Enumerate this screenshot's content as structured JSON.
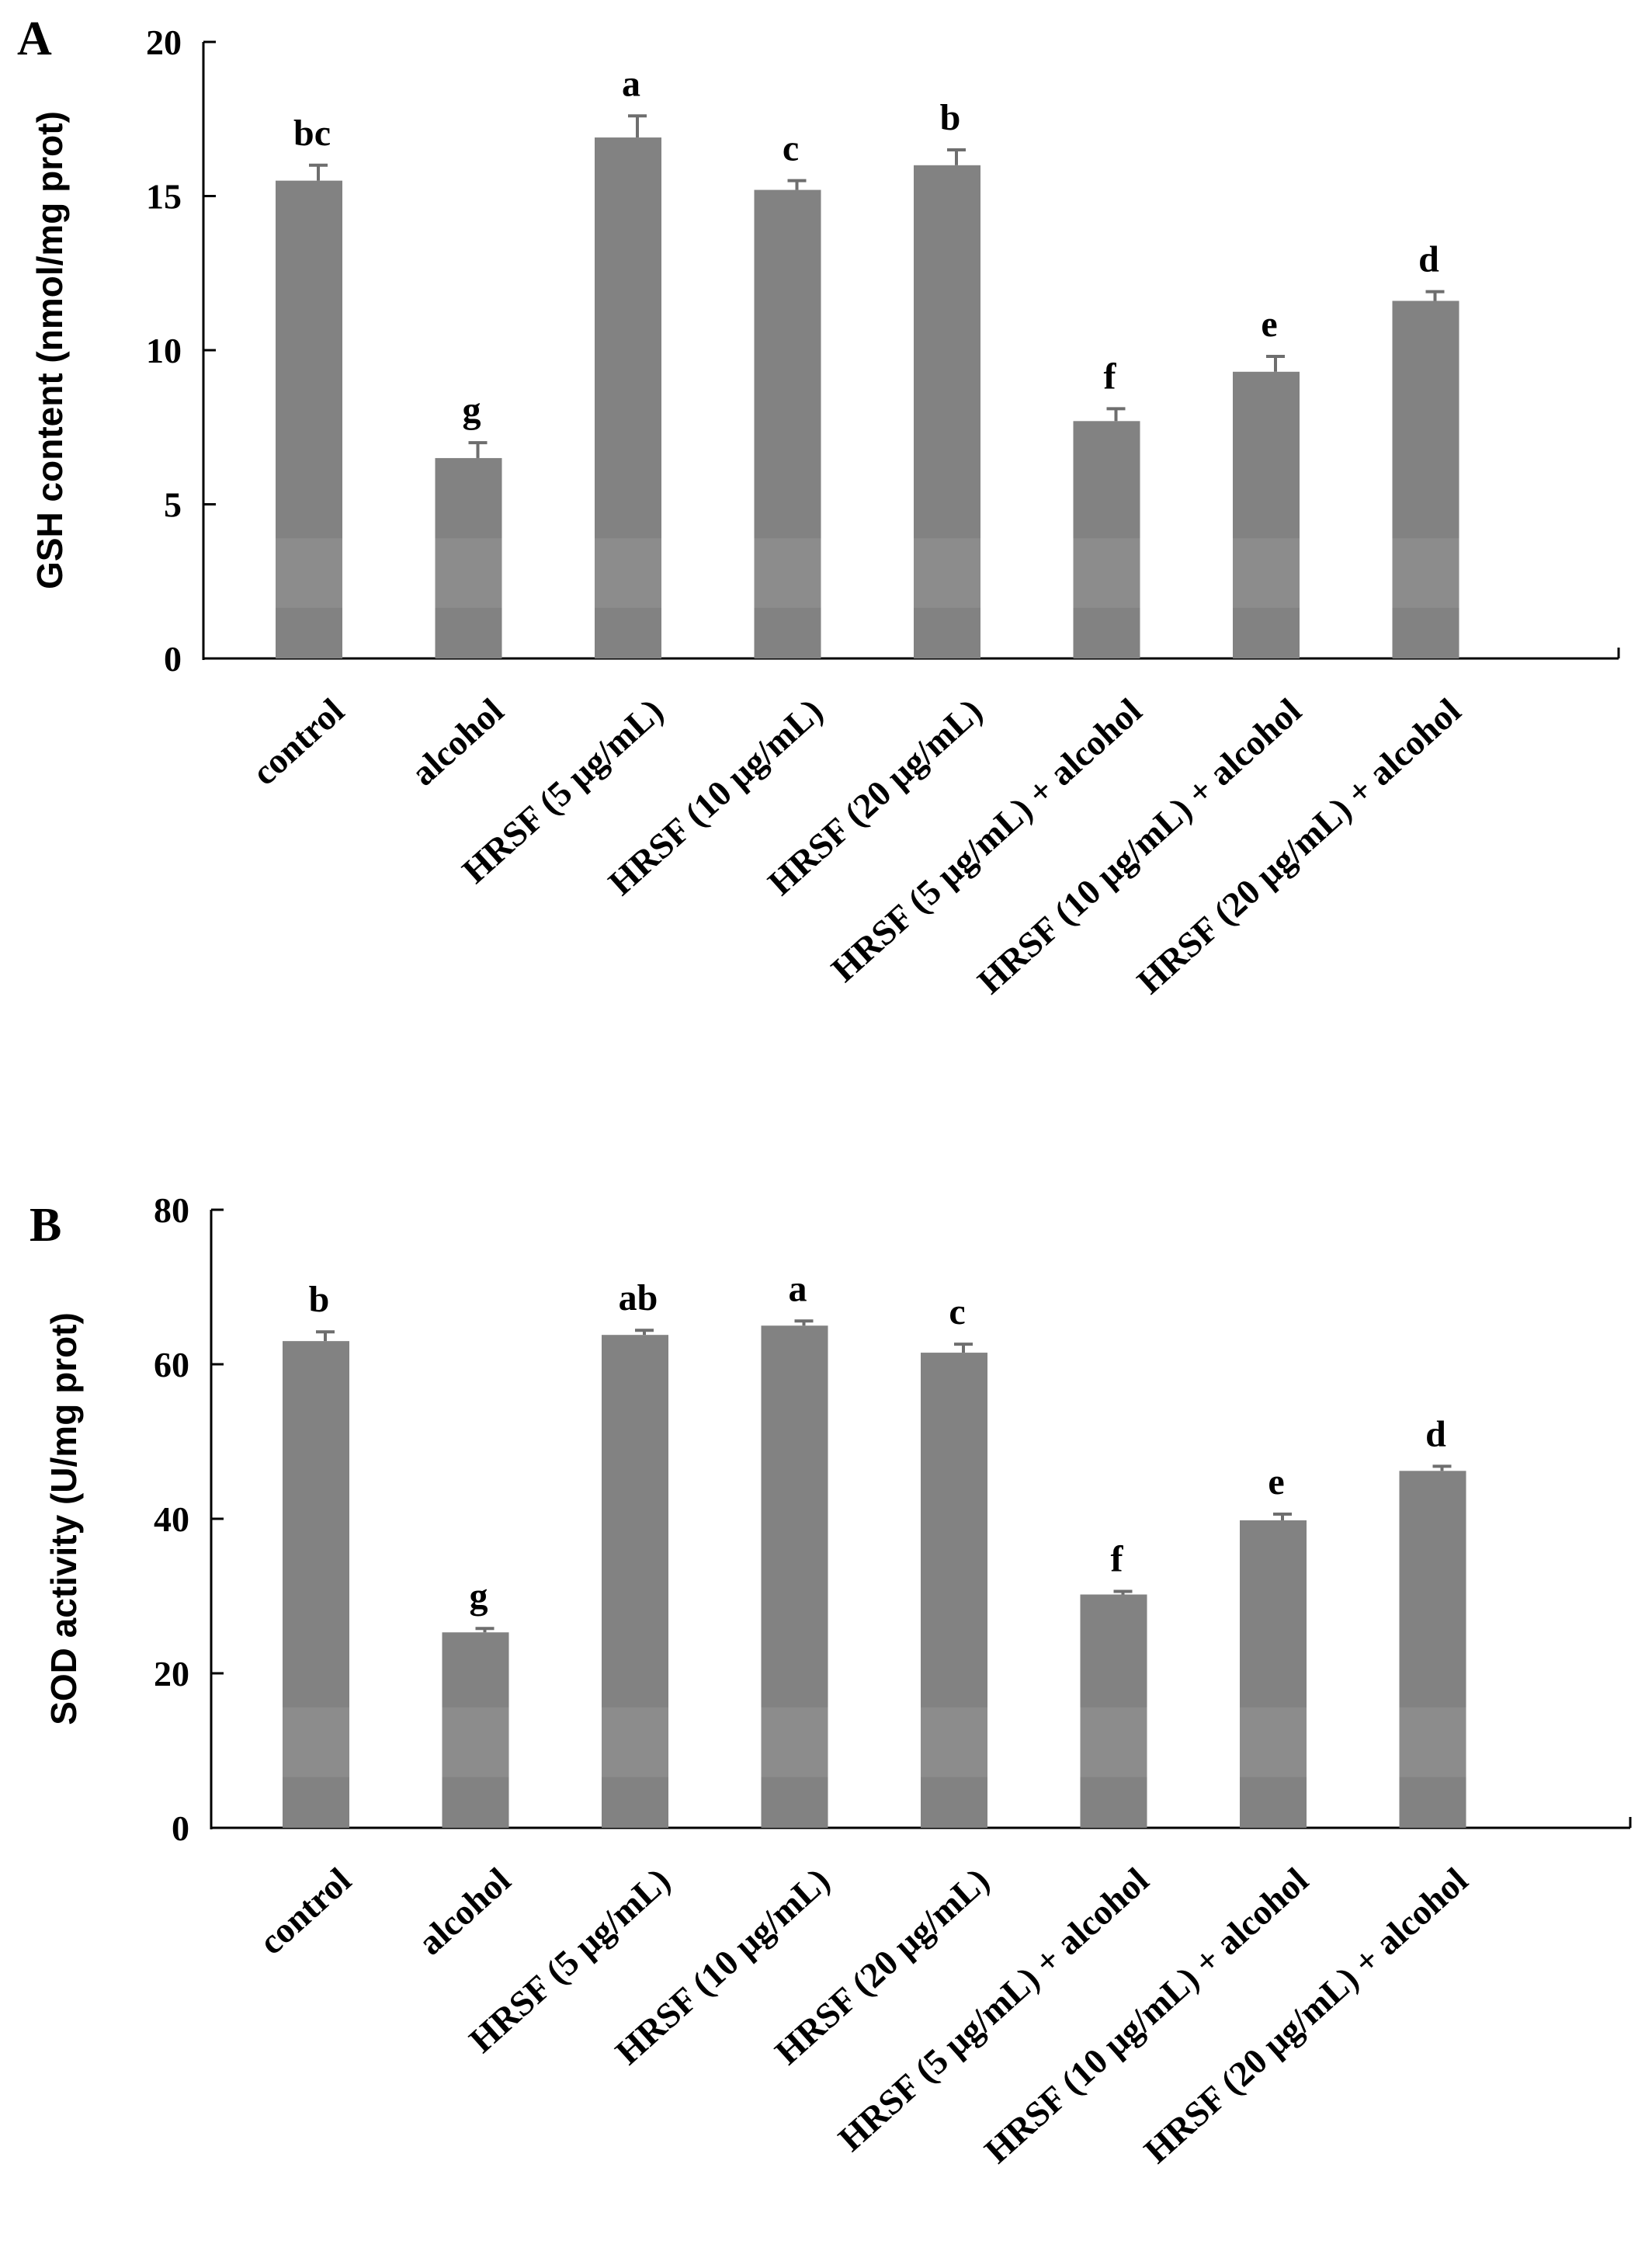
{
  "chart_data": [
    {
      "panel": "A",
      "type": "bar",
      "title": "",
      "xlabel": "",
      "ylabel": "GSH content (nmol/mg prot)",
      "ylim": [
        0,
        20
      ],
      "yticks": [
        0,
        5,
        10,
        15,
        20
      ],
      "ytick_labels": [
        "0",
        "5",
        "10",
        "15",
        "20"
      ],
      "categories": [
        "control",
        "alcohol",
        "HRSF (5 μg/mL)",
        "HRSF (10 μg/mL)",
        "HRSF (20 μg/mL)",
        "HRSF (5 μg/mL) + alcohol",
        "HRSF (10 μg/mL) + alcohol",
        "HRSF (20 μg/mL) + alcohol"
      ],
      "values": [
        15.5,
        6.5,
        16.9,
        15.2,
        16.0,
        7.7,
        9.3,
        11.6
      ],
      "errors": [
        0.5,
        0.5,
        0.7,
        0.3,
        0.5,
        0.4,
        0.5,
        0.3
      ],
      "significance": [
        "bc",
        "g",
        "a",
        "c",
        "b",
        "f",
        "e",
        "d"
      ],
      "bar_color": "#828282",
      "grid": false
    },
    {
      "panel": "B",
      "type": "bar",
      "title": "",
      "xlabel": "",
      "ylabel": "SOD activity (U/mg prot)",
      "ylim": [
        0,
        80
      ],
      "yticks": [
        0,
        20,
        40,
        60,
        80
      ],
      "ytick_labels": [
        "0",
        "20",
        "40",
        "60",
        "80"
      ],
      "categories": [
        "control",
        "alcohol",
        "HRSF (5 μg/mL)",
        "HRSF (10 μg/mL)",
        "HRSF (20 μg/mL)",
        "HRSF (5 μg/mL) + alcohol",
        "HRSF (10 μg/mL) + alcohol",
        "HRSF (20 μg/mL) + alcohol"
      ],
      "values": [
        63.0,
        25.3,
        63.8,
        65.0,
        61.5,
        30.2,
        39.8,
        46.2
      ],
      "errors": [
        1.2,
        0.5,
        0.6,
        0.6,
        1.1,
        0.4,
        0.8,
        0.6
      ],
      "significance": [
        "b",
        "g",
        "ab",
        "a",
        "c",
        "f",
        "e",
        "d"
      ],
      "bar_color": "#828282",
      "grid": false
    }
  ]
}
